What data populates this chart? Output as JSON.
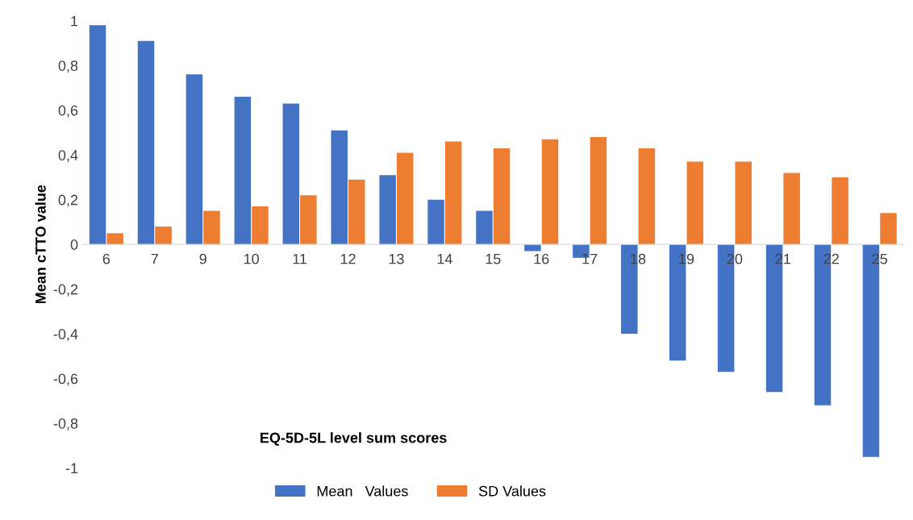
{
  "chart_data": {
    "type": "bar",
    "categories": [
      "6",
      "7",
      "9",
      "10",
      "11",
      "12",
      "13",
      "14",
      "15",
      "16",
      "17",
      "18",
      "19",
      "20",
      "21",
      "22",
      "25"
    ],
    "series": [
      {
        "name": "Mean   Values",
        "color": "#4472c4",
        "values": [
          0.98,
          0.91,
          0.76,
          0.66,
          0.63,
          0.51,
          0.31,
          0.2,
          0.15,
          -0.03,
          -0.06,
          -0.4,
          -0.52,
          -0.57,
          -0.66,
          -0.72,
          -0.95
        ]
      },
      {
        "name": "SD Values",
        "color": "#ed7d31",
        "values": [
          0.05,
          0.08,
          0.15,
          0.17,
          0.22,
          0.29,
          0.41,
          0.46,
          0.43,
          0.47,
          0.48,
          0.43,
          0.37,
          0.37,
          0.32,
          0.3,
          0.14
        ]
      }
    ],
    "xlabel": "EQ-5D-5L level sum scores",
    "ylabel": "Mean cTTO value",
    "ylim": [
      -1,
      1
    ],
    "yticks": [
      {
        "value": 1,
        "label": "1"
      },
      {
        "value": 0.8,
        "label": "0,8"
      },
      {
        "value": 0.6,
        "label": "0,6"
      },
      {
        "value": 0.4,
        "label": "0,4"
      },
      {
        "value": 0.2,
        "label": "0,2"
      },
      {
        "value": 0,
        "label": "0"
      },
      {
        "value": -0.2,
        "label": "-0,2"
      },
      {
        "value": -0.4,
        "label": "-0,4"
      },
      {
        "value": -0.6,
        "label": "-0,6"
      },
      {
        "value": -0.8,
        "label": "-0,8"
      },
      {
        "value": -1,
        "label": "-1"
      }
    ],
    "grid": false,
    "legend": "bottom"
  }
}
